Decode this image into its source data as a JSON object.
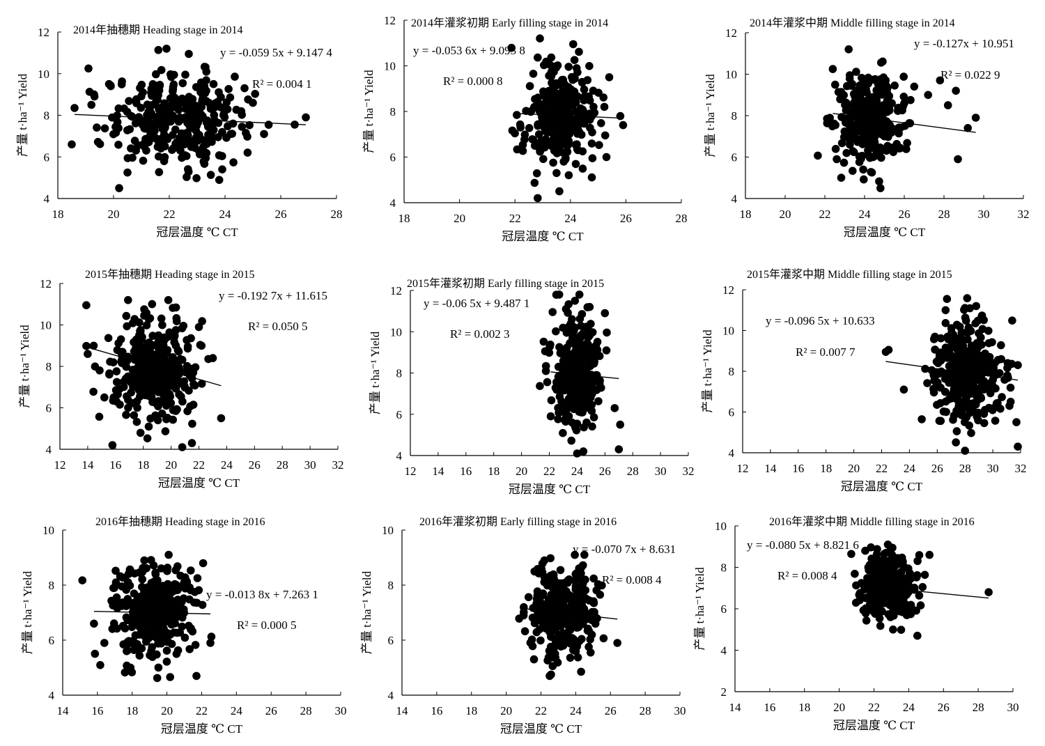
{
  "chart_data": [
    {
      "type": "scatter",
      "title": "2014年抽穗期 Heading stage in 2014",
      "xlabel": "冠层温度 ℃  CT",
      "ylabel": "产量 t·ha⁻¹ Yield",
      "xlim": [
        18,
        28
      ],
      "ylim": [
        4,
        12
      ],
      "xticks": [
        "18",
        "20",
        "22",
        "24",
        "26",
        "28"
      ],
      "yticks": [
        "4",
        "6",
        "8",
        "10",
        "12"
      ],
      "equation": "y = -0.059 5x + 9.147 4",
      "r2": "R² = 0.004 1",
      "regression": {
        "slope": -0.0595,
        "intercept": 9.1474,
        "x_range": [
          18.6,
          26.9
        ]
      },
      "cloud": {
        "x_mean": 22.3,
        "x_sd": 1.25,
        "y_mean": 7.82,
        "y_sd": 1.1,
        "n": 330
      },
      "points": [
        [
          18.5,
          6.6
        ],
        [
          18.6,
          8.35
        ],
        [
          19.1,
          10.25
        ],
        [
          20.2,
          4.5
        ],
        [
          21.9,
          11.2
        ],
        [
          22.7,
          10.95
        ],
        [
          26.5,
          7.55
        ],
        [
          26.9,
          7.9
        ],
        [
          25.4,
          7.1
        ],
        [
          24.7,
          9.3
        ],
        [
          23.9,
          5.4
        ],
        [
          20.5,
          5.25
        ],
        [
          19.9,
          9.4
        ],
        [
          19.3,
          9.0
        ],
        [
          25.0,
          8.6
        ]
      ]
    },
    {
      "type": "scatter",
      "title": "2014年灌浆初期 Early filling stage in 2014",
      "xlabel": "冠层温度 ℃  CT",
      "ylabel": "产量 t·ha⁻¹ Yield",
      "xlim": [
        18,
        28
      ],
      "ylim": [
        4,
        12
      ],
      "xticks": [
        "18",
        "20",
        "22",
        "24",
        "26",
        "28"
      ],
      "yticks": [
        "4",
        "6",
        "8",
        "10",
        "12"
      ],
      "equation": "y = -0.053 6x + 9.093 8",
      "r2": "R² = 0.000 8",
      "regression": {
        "slope": -0.0536,
        "intercept": 9.0938,
        "x_range": [
          22.2,
          25.9
        ]
      },
      "cloud": {
        "x_mean": 23.6,
        "x_sd": 0.62,
        "y_mean": 7.75,
        "y_sd": 1.15,
        "n": 300
      },
      "points": [
        [
          22.9,
          11.2
        ],
        [
          24.1,
          10.95
        ],
        [
          23.6,
          4.5
        ],
        [
          22.2,
          7.3
        ],
        [
          25.4,
          9.5
        ],
        [
          25.9,
          7.4
        ],
        [
          25.8,
          7.8
        ],
        [
          25.3,
          6.0
        ],
        [
          23.5,
          5.3
        ]
      ]
    },
    {
      "type": "scatter",
      "title": "2014年灌浆中期 Middle filling stage in 2014",
      "xlabel": "冠层温度 ℃  CT",
      "ylabel": "产量 t·ha⁻¹ Yield",
      "xlim": [
        18,
        32
      ],
      "ylim": [
        4,
        12
      ],
      "xticks": [
        "18",
        "20",
        "22",
        "24",
        "26",
        "28",
        "30",
        "32"
      ],
      "yticks": [
        "4",
        "6",
        "8",
        "10",
        "12"
      ],
      "equation": "y = -0.127x + 10.951",
      "r2": "R² = 0.022 9",
      "regression": {
        "slope": -0.127,
        "intercept": 10.951,
        "x_range": [
          22.4,
          29.6
        ]
      },
      "cloud": {
        "x_mean": 24.2,
        "x_sd": 0.85,
        "y_mean": 7.8,
        "y_sd": 1.1,
        "n": 320
      },
      "points": [
        [
          23.2,
          11.2
        ],
        [
          22.4,
          10.25
        ],
        [
          22.6,
          5.9
        ],
        [
          24.8,
          4.5
        ],
        [
          29.6,
          7.9
        ],
        [
          28.7,
          5.9
        ],
        [
          28.6,
          9.2
        ],
        [
          27.8,
          9.7
        ],
        [
          28.2,
          8.5
        ],
        [
          27.2,
          9.0
        ],
        [
          29.2,
          7.4
        ],
        [
          26.5,
          9.4
        ],
        [
          26.0,
          8.6
        ]
      ]
    },
    {
      "type": "scatter",
      "title": "2015年抽穗期 Heading stage in 2015",
      "xlabel": "冠层温度 ℃  CT",
      "ylabel": "产量 t·ha⁻¹ Yield",
      "xlim": [
        12,
        32
      ],
      "ylim": [
        4,
        12
      ],
      "xticks": [
        "12",
        "14",
        "16",
        "18",
        "20",
        "22",
        "24",
        "26",
        "28",
        "30",
        "32"
      ],
      "yticks": [
        "4",
        "6",
        "8",
        "10",
        "12"
      ],
      "equation": "y = -0.192 7x + 11.615",
      "r2": "R² = 0.050 5",
      "regression": {
        "slope": -0.1927,
        "intercept": 11.615,
        "x_range": [
          13.9,
          23.6
        ]
      },
      "cloud": {
        "x_mean": 18.9,
        "x_sd": 1.55,
        "y_mean": 7.95,
        "y_sd": 1.2,
        "n": 350
      },
      "points": [
        [
          13.9,
          10.95
        ],
        [
          14.0,
          8.6
        ],
        [
          15.2,
          6.5
        ],
        [
          20.8,
          4.1
        ],
        [
          21.5,
          4.3
        ],
        [
          23.6,
          5.5
        ],
        [
          23.0,
          8.4
        ],
        [
          22.0,
          9.9
        ],
        [
          16.9,
          11.2
        ],
        [
          19.8,
          11.2
        ]
      ]
    },
    {
      "type": "scatter",
      "title": "2015年灌浆初期 Early filling stage in 2015",
      "xlabel": "冠层温度 ℃  CT",
      "ylabel": "产量 t·ha⁻¹ Yield",
      "xlim": [
        12,
        32
      ],
      "ylim": [
        4,
        12
      ],
      "xticks": [
        "12",
        "14",
        "16",
        "18",
        "20",
        "22",
        "24",
        "26",
        "28",
        "30",
        "32"
      ],
      "yticks": [
        "4",
        "6",
        "8",
        "10",
        "12"
      ],
      "equation": "y = -0.06 5x + 9.487 1",
      "r2": "R² = 0.002 3",
      "regression": {
        "slope": -0.065,
        "intercept": 9.4871,
        "x_range": [
          22.1,
          27.0
        ]
      },
      "cloud": {
        "x_mean": 24.0,
        "x_sd": 0.9,
        "y_mean": 7.9,
        "y_sd": 1.3,
        "n": 320
      },
      "points": [
        [
          22.1,
          5.9
        ],
        [
          24.0,
          4.1
        ],
        [
          27.0,
          4.3
        ],
        [
          27.1,
          5.5
        ],
        [
          26.7,
          6.3
        ],
        [
          26.0,
          10.9
        ],
        [
          23.2,
          11.1
        ],
        [
          24.9,
          11.2
        ]
      ]
    },
    {
      "type": "scatter",
      "title": "2015年灌浆中期 Middle filling stage in 2015",
      "xlabel": "冠层温度 ℃  CT",
      "ylabel": "产量 t·ha⁻¹ Yield",
      "xlim": [
        12,
        32
      ],
      "ylim": [
        4,
        12
      ],
      "xticks": [
        "12",
        "14",
        "16",
        "18",
        "20",
        "22",
        "24",
        "26",
        "28",
        "30",
        "32"
      ],
      "yticks": [
        "4",
        "6",
        "8",
        "10",
        "12"
      ],
      "equation": "y = -0.096 5x + 10.633",
      "r2": "R² = 0.007 7",
      "regression": {
        "slope": -0.0965,
        "intercept": 10.633,
        "x_range": [
          22.3,
          31.8
        ]
      },
      "cloud": {
        "x_mean": 28.0,
        "x_sd": 1.15,
        "y_mean": 7.95,
        "y_sd": 1.25,
        "n": 360
      },
      "points": [
        [
          22.3,
          8.95
        ],
        [
          22.5,
          9.05
        ],
        [
          23.6,
          7.1
        ],
        [
          31.8,
          4.3
        ],
        [
          31.7,
          5.5
        ],
        [
          31.8,
          8.3
        ],
        [
          31.2,
          6.3
        ],
        [
          30.6,
          8.6
        ],
        [
          26.6,
          11.0
        ],
        [
          28.8,
          11.2
        ],
        [
          28.0,
          4.1
        ]
      ]
    },
    {
      "type": "scatter",
      "title": "2016年抽穗期 Heading stage in 2016",
      "xlabel": "冠层温度 ℃  CT",
      "ylabel": "产量 t·ha⁻¹ Yield",
      "xlim": [
        14,
        30
      ],
      "ylim": [
        4,
        10
      ],
      "xticks": [
        "14",
        "16",
        "18",
        "20",
        "22",
        "24",
        "26",
        "28",
        "30"
      ],
      "yticks": [
        "4",
        "6",
        "8",
        "10"
      ],
      "equation": "y = -0.013 8x + 7.263 1",
      "r2": "R² = 0.000 5",
      "regression": {
        "slope": -0.0138,
        "intercept": 7.2631,
        "x_range": [
          15.8,
          22.5
        ]
      },
      "cloud": {
        "x_mean": 19.2,
        "x_sd": 1.2,
        "y_mean": 7.05,
        "y_sd": 0.85,
        "n": 360
      },
      "points": [
        [
          15.8,
          6.6
        ],
        [
          17.9,
          5.0
        ],
        [
          21.7,
          4.7
        ],
        [
          22.5,
          5.9
        ],
        [
          20.1,
          9.1
        ],
        [
          18.7,
          8.9
        ],
        [
          16.4,
          5.9
        ]
      ]
    },
    {
      "type": "scatter",
      "title": "2016年灌浆初期 Early filling stage in 2016",
      "xlabel": "冠层温度 ℃  CT",
      "ylabel": "产量 t·ha⁻¹ Yield",
      "xlim": [
        14,
        30
      ],
      "ylim": [
        4,
        10
      ],
      "xticks": [
        "14",
        "16",
        "18",
        "20",
        "22",
        "24",
        "26",
        "28",
        "30"
      ],
      "yticks": [
        "4",
        "6",
        "8",
        "10"
      ],
      "equation": "y = -0.070 7x + 8.631",
      "r2": "R² = 0.008 4",
      "regression": {
        "slope": -0.0707,
        "intercept": 8.631,
        "x_range": [
          21.0,
          26.4
        ]
      },
      "cloud": {
        "x_mean": 23.2,
        "x_sd": 0.95,
        "y_mean": 7.0,
        "y_sd": 0.8,
        "n": 330
      },
      "points": [
        [
          22.5,
          4.7
        ],
        [
          21.6,
          5.3
        ],
        [
          24.5,
          9.1
        ],
        [
          26.4,
          5.9
        ],
        [
          21.0,
          6.9
        ],
        [
          22.2,
          8.9
        ]
      ]
    },
    {
      "type": "scatter",
      "title": "2016年灌浆中期 Middle filling stage in 2016",
      "xlabel": "冠层温度 ℃  CT",
      "ylabel": "产量 t·ha⁻¹ Yield",
      "xlim": [
        14,
        30
      ],
      "ylim": [
        2,
        10
      ],
      "xticks": [
        "14",
        "16",
        "18",
        "20",
        "22",
        "24",
        "26",
        "28",
        "30"
      ],
      "yticks": [
        "2",
        "4",
        "6",
        "8",
        "10"
      ],
      "equation": "y = -0.080 5x + 8.821 6",
      "r2": "R² = 0.008 4",
      "regression": {
        "slope": -0.0805,
        "intercept": 8.8216,
        "x_range": [
          21.0,
          28.6
        ]
      },
      "cloud": {
        "x_mean": 22.9,
        "x_sd": 0.8,
        "y_mean": 7.05,
        "y_sd": 0.75,
        "n": 330
      },
      "points": [
        [
          28.6,
          6.8
        ],
        [
          24.5,
          4.7
        ],
        [
          22.8,
          9.1
        ],
        [
          21.5,
          8.8
        ],
        [
          23.1,
          5.0
        ]
      ]
    }
  ]
}
